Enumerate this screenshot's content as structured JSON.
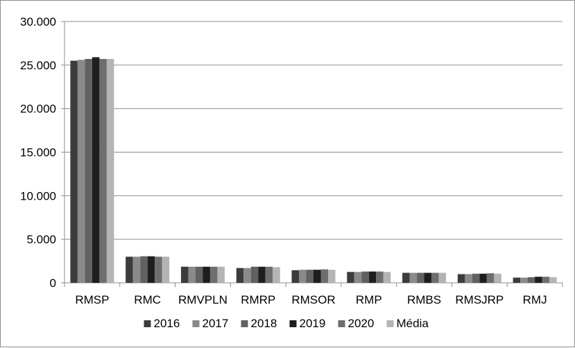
{
  "chart_data": {
    "type": "bar",
    "categories": [
      "RMSP",
      "RMC",
      "RMVPLN",
      "RMRP",
      "RMSOR",
      "RMP",
      "RMBS",
      "RMSJRP",
      "RMJ"
    ],
    "series": [
      {
        "name": "2016",
        "color": "#3c3c3c",
        "values": [
          25500,
          3000,
          1850,
          1700,
          1450,
          1250,
          1150,
          1000,
          600
        ]
      },
      {
        "name": "2017",
        "color": "#8a8a8a",
        "values": [
          25600,
          3000,
          1850,
          1700,
          1500,
          1250,
          1150,
          1000,
          600
        ]
      },
      {
        "name": "2018",
        "color": "#616161",
        "values": [
          25700,
          3050,
          1850,
          1850,
          1500,
          1300,
          1150,
          1050,
          650
        ]
      },
      {
        "name": "2019",
        "color": "#1e1e1e",
        "values": [
          25900,
          3050,
          1850,
          1850,
          1500,
          1300,
          1150,
          1050,
          700
        ]
      },
      {
        "name": "2020",
        "color": "#6e6e6e",
        "values": [
          25700,
          3000,
          1850,
          1850,
          1550,
          1300,
          1150,
          1100,
          700
        ]
      },
      {
        "name": "Média",
        "color": "#b4b4b4",
        "values": [
          25700,
          3000,
          1850,
          1800,
          1500,
          1250,
          1150,
          1050,
          650
        ]
      }
    ],
    "y_ticks": [
      "0",
      "5.000",
      "10.000",
      "15.000",
      "20.000",
      "25.000",
      "30.000"
    ],
    "ylim": [
      0,
      30000
    ],
    "grid": true,
    "legend_position": "bottom"
  }
}
